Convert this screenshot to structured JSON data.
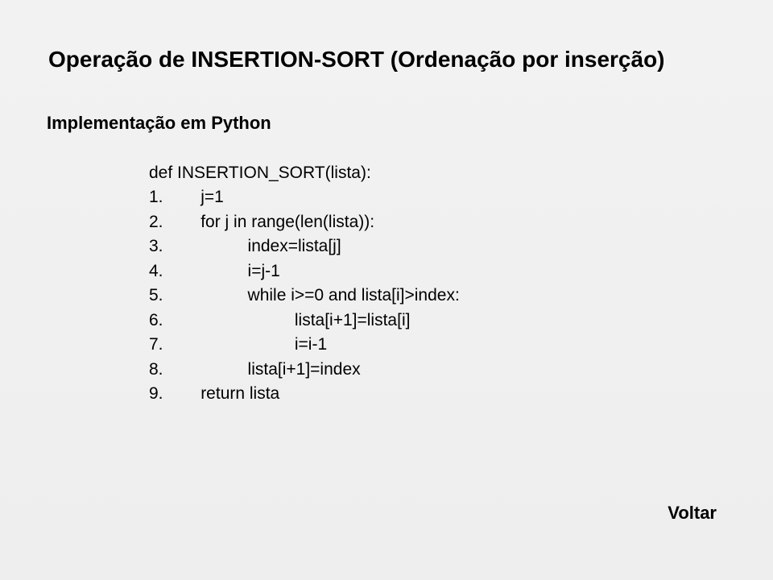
{
  "slide": {
    "background_gradient": [
      "#f2f2f2",
      "#eeeeee"
    ],
    "text_color": "#000000",
    "font_family": "Arial",
    "title": {
      "text": "Operação de INSERTION-SORT (Ordenação por inserção)",
      "fontsize": 28,
      "weight": "bold"
    },
    "subtitle": {
      "text": "Implementação em Python",
      "fontsize": 22,
      "weight": "bold"
    },
    "code": {
      "fontsize": 21,
      "line_height": 1.45,
      "lines": [
        "def INSERTION_SORT(lista):",
        "1.        j=1",
        "2.        for j in range(len(lista)):",
        "3.                  index=lista[j]",
        "4.                  i=j-1",
        "5.                  while i>=0 and lista[i]>index:",
        "6.                            lista[i+1]=lista[i]",
        "7.                            i=i-1",
        "8.                  lista[i+1]=index",
        "9.        return lista"
      ]
    },
    "back_link": {
      "text": "Voltar",
      "fontsize": 22,
      "weight": "bold"
    }
  }
}
